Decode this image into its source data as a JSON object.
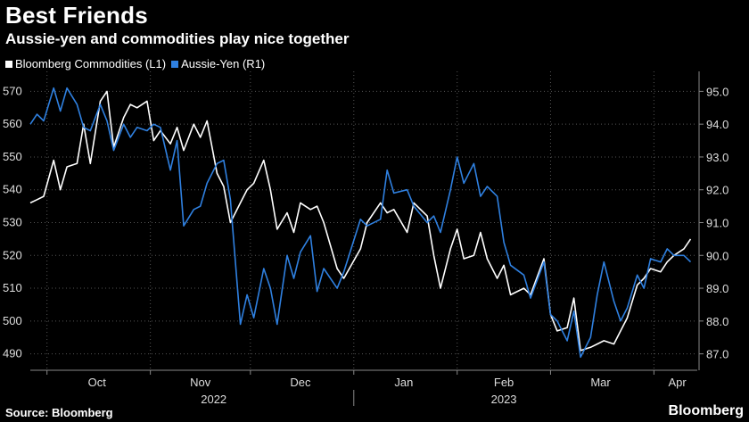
{
  "header": {
    "title": "Best Friends",
    "subtitle": "Aussie-yen and commodities play nice together"
  },
  "footer": {
    "source": "Source: Bloomberg",
    "brand": "Bloomberg"
  },
  "colors": {
    "background": "#000000",
    "commodities": "#ffffff",
    "aussie_yen": "#2f80e0",
    "grid": "#555555"
  },
  "chart_data": {
    "type": "line",
    "title": "Best Friends",
    "subtitle": "Aussie-yen and commodities play nice together",
    "legend_position": "top-left",
    "grid": "dotted vertical and horizontal",
    "x_ticks": [
      "Oct",
      "Nov",
      "Dec",
      "Jan",
      "Feb",
      "Mar",
      "Apr"
    ],
    "x_years": [
      "2022",
      "2023"
    ],
    "y_left": {
      "ylim": [
        485,
        575
      ],
      "ticks": [
        "490",
        "500",
        "510",
        "520",
        "530",
        "540",
        "550",
        "560",
        "570"
      ]
    },
    "y_right": {
      "ylim": [
        86.5,
        95.5
      ],
      "ticks": [
        "87.0",
        "88.0",
        "89.0",
        "90.0",
        "91.0",
        "92.0",
        "93.0",
        "94.0",
        "95.0"
      ]
    },
    "series": [
      {
        "name": "Bloomberg Commodities (L1)",
        "axis": "left",
        "color": "#ffffff",
        "x": [
          "2022-09-26",
          "2022-09-28",
          "2022-09-30",
          "2022-10-03",
          "2022-10-05",
          "2022-10-07",
          "2022-10-10",
          "2022-10-12",
          "2022-10-14",
          "2022-10-17",
          "2022-10-19",
          "2022-10-21",
          "2022-10-24",
          "2022-10-26",
          "2022-10-28",
          "2022-10-31",
          "2022-11-02",
          "2022-11-04",
          "2022-11-07",
          "2022-11-09",
          "2022-11-11",
          "2022-11-14",
          "2022-11-16",
          "2022-11-18",
          "2022-11-21",
          "2022-11-23",
          "2022-11-25",
          "2022-11-28",
          "2022-11-30",
          "2022-12-02",
          "2022-12-05",
          "2022-12-07",
          "2022-12-09",
          "2022-12-12",
          "2022-12-14",
          "2022-12-16",
          "2022-12-19",
          "2022-12-21",
          "2022-12-23",
          "2022-12-27",
          "2022-12-29",
          "2023-01-03",
          "2023-01-05",
          "2023-01-09",
          "2023-01-11",
          "2023-01-13",
          "2023-01-17",
          "2023-01-19",
          "2023-01-23",
          "2023-01-25",
          "2023-01-27",
          "2023-01-30",
          "2023-02-01",
          "2023-02-03",
          "2023-02-06",
          "2023-02-08",
          "2023-02-10",
          "2023-02-13",
          "2023-02-15",
          "2023-02-17",
          "2023-02-21",
          "2023-02-23",
          "2023-02-27",
          "2023-03-01",
          "2023-03-03",
          "2023-03-06",
          "2023-03-08",
          "2023-03-10",
          "2023-03-13",
          "2023-03-15",
          "2023-03-17",
          "2023-03-20",
          "2023-03-22",
          "2023-03-24",
          "2023-03-27",
          "2023-03-29",
          "2023-03-31",
          "2023-04-03",
          "2023-04-05",
          "2023-04-07",
          "2023-04-10",
          "2023-04-12"
        ],
        "values": [
          536,
          537,
          538,
          549,
          540,
          547,
          548,
          560,
          548,
          567,
          570,
          553,
          562,
          566,
          565,
          567,
          555,
          558,
          554,
          559,
          552,
          560,
          556,
          561,
          545,
          541,
          530,
          536,
          540,
          542,
          549,
          540,
          528,
          533,
          527,
          536,
          534,
          535,
          530,
          516,
          513,
          522,
          530,
          536,
          533,
          534,
          527,
          536,
          532,
          520,
          510,
          522,
          528,
          519,
          520,
          527,
          519,
          513,
          517,
          508,
          510,
          508,
          519,
          502,
          497,
          498,
          507,
          491,
          492,
          493,
          494,
          493,
          497,
          501,
          511,
          513,
          516,
          515,
          518,
          520,
          522,
          525
        ],
        "x_order_note_hidden": null
      },
      {
        "name": "Aussie-Yen (R1)",
        "axis": "right",
        "color": "#2f80e0",
        "x": [
          "2022-09-26",
          "2022-09-28",
          "2022-09-30",
          "2022-10-03",
          "2022-10-05",
          "2022-10-07",
          "2022-10-10",
          "2022-10-12",
          "2022-10-14",
          "2022-10-17",
          "2022-10-19",
          "2022-10-21",
          "2022-10-24",
          "2022-10-26",
          "2022-10-28",
          "2022-10-31",
          "2022-11-02",
          "2022-11-04",
          "2022-11-07",
          "2022-11-09",
          "2022-11-11",
          "2022-11-14",
          "2022-11-16",
          "2022-11-18",
          "2022-11-21",
          "2022-11-23",
          "2022-11-25",
          "2022-11-28",
          "2022-11-30",
          "2022-12-02",
          "2022-12-05",
          "2022-12-07",
          "2022-12-09",
          "2022-12-12",
          "2022-12-14",
          "2022-12-16",
          "2022-12-19",
          "2022-12-21",
          "2022-12-23",
          "2022-12-27",
          "2022-12-29",
          "2023-01-03",
          "2023-01-05",
          "2023-01-09",
          "2023-01-11",
          "2023-01-13",
          "2023-01-17",
          "2023-01-19",
          "2023-01-23",
          "2023-01-25",
          "2023-01-27",
          "2023-01-30",
          "2023-02-01",
          "2023-02-03",
          "2023-02-06",
          "2023-02-08",
          "2023-02-10",
          "2023-02-13",
          "2023-02-15",
          "2023-02-17",
          "2023-02-21",
          "2023-02-23",
          "2023-02-27",
          "2023-03-01",
          "2023-03-03",
          "2023-03-06",
          "2023-03-08",
          "2023-03-10",
          "2023-03-13",
          "2023-03-15",
          "2023-03-17",
          "2023-03-20",
          "2023-03-22",
          "2023-03-24",
          "2023-03-27",
          "2023-03-29",
          "2023-03-31",
          "2023-04-03",
          "2023-04-05",
          "2023-04-07",
          "2023-04-10",
          "2023-04-12"
        ],
        "values": [
          94.0,
          94.3,
          94.1,
          95.1,
          94.4,
          95.1,
          94.6,
          93.9,
          93.8,
          94.6,
          94.1,
          93.2,
          94.0,
          93.6,
          93.9,
          93.8,
          94.0,
          93.9,
          92.6,
          93.5,
          90.9,
          91.4,
          91.5,
          92.2,
          92.8,
          92.9,
          91.7,
          87.9,
          88.8,
          88.1,
          89.6,
          89.0,
          87.9,
          90.0,
          89.3,
          90.1,
          90.6,
          88.9,
          89.6,
          89.0,
          89.5,
          91.1,
          90.9,
          91.1,
          92.6,
          91.9,
          92.0,
          91.5,
          91.0,
          91.2,
          90.7,
          92.0,
          93.0,
          92.2,
          92.8,
          91.8,
          92.1,
          91.8,
          90.4,
          89.7,
          89.4,
          88.7,
          89.8,
          88.2,
          88.0,
          87.4,
          88.3,
          86.9,
          87.5,
          88.8,
          89.8,
          88.6,
          88.0,
          88.4,
          89.4,
          89.0,
          89.9,
          89.8,
          90.2,
          90.0,
          90.0,
          89.8
        ],
        "x_order_note_hidden": null
      }
    ]
  }
}
